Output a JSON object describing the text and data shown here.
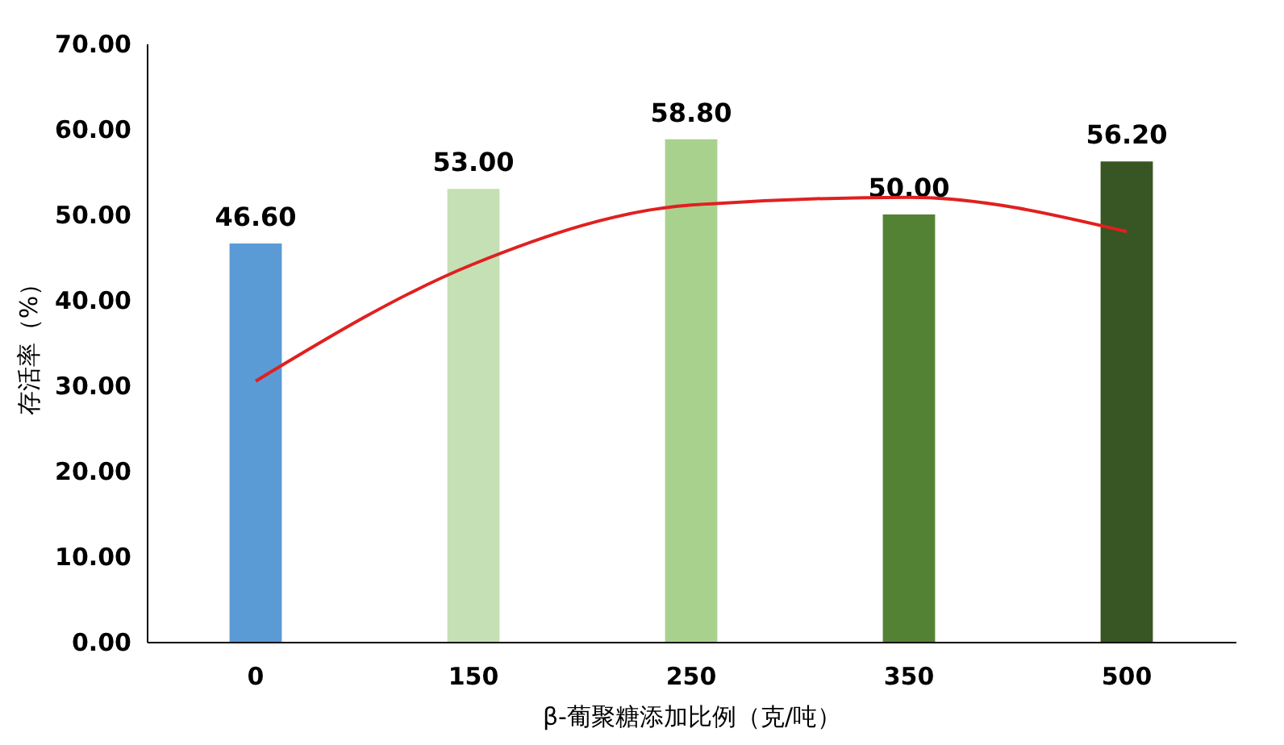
{
  "chart_data": {
    "type": "bar",
    "xlabel": "β-葡聚糖添加比例（克/吨）",
    "ylabel": "存活率（%）",
    "categories": [
      "0",
      "150",
      "250",
      "350",
      "500"
    ],
    "series": [
      {
        "values": [
          46.6,
          53.0,
          58.8,
          50.0,
          56.2
        ],
        "colors": [
          "#5b9bd5",
          "#c5e0b4",
          "#a9d18e",
          "#548235",
          "#375623"
        ],
        "value_labels": [
          "46.60",
          "53.00",
          "58.80",
          "50.00",
          "56.20"
        ]
      },
      {
        "type": "line",
        "color": "#e02020",
        "x": [
          "0",
          "150",
          "250",
          "350",
          "500"
        ],
        "values": [
          30.5,
          44.2,
          51.1,
          52.0,
          48.0
        ]
      }
    ],
    "ylim": [
      0,
      70
    ],
    "yticks": [
      {
        "value": 0,
        "label": "0.00"
      },
      {
        "value": 10,
        "label": "10.00"
      },
      {
        "value": 20,
        "label": "20.00"
      },
      {
        "value": 30,
        "label": "30.00"
      },
      {
        "value": 40,
        "label": "40.00"
      },
      {
        "value": 50,
        "label": "50.00"
      },
      {
        "value": 60,
        "label": "60.00"
      },
      {
        "value": 70,
        "label": "70.00"
      }
    ],
    "grid": false
  }
}
